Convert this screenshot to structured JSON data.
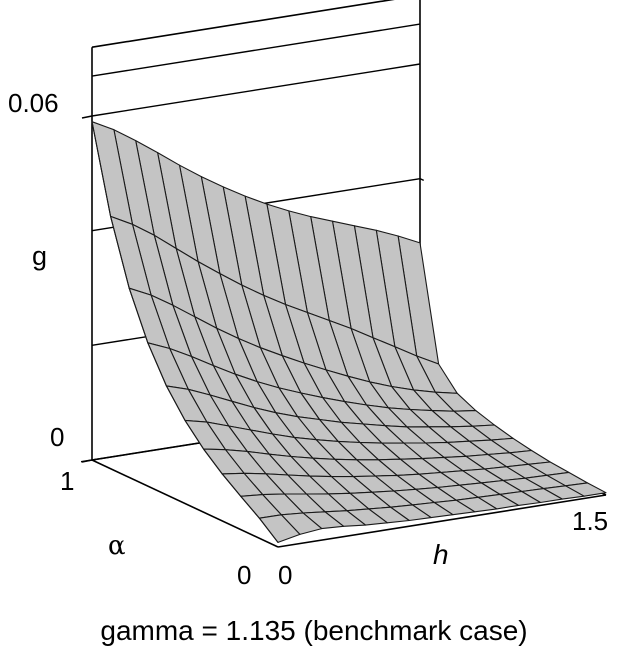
{
  "chart_data": {
    "type": "surface3d",
    "title": "gamma = 1.135 (benchmark case)",
    "axes": {
      "h": {
        "label": "h",
        "range": [
          0,
          1.5
        ],
        "ticks": [
          "0",
          "1.5"
        ]
      },
      "alpha": {
        "label": "α",
        "range": [
          0,
          1
        ],
        "ticks": [
          "0",
          "1"
        ]
      },
      "g": {
        "label": "g",
        "range": [
          0,
          0.06
        ],
        "ticks": [
          "0",
          "0.06"
        ]
      }
    },
    "grid": true,
    "h": [
      0,
      0.1,
      0.2,
      0.3,
      0.4,
      0.5,
      0.6,
      0.7,
      0.8,
      0.9,
      1.0,
      1.1,
      1.2,
      1.3,
      1.4,
      1.5
    ],
    "alpha": [
      0,
      0.1,
      0.2,
      0.3,
      0.4,
      0.5,
      0.6,
      0.7,
      0.8,
      0.9,
      1.0
    ],
    "g_by_alpha": [
      [
        0.0008,
        0.0016,
        0.002,
        0.0018,
        0.0014,
        0.0012,
        0.001,
        0.0009,
        0.0008,
        0.0007,
        0.0006,
        0.0006,
        0.0005,
        0.0005,
        0.0004,
        0.0004
      ],
      [
        0.0035,
        0.0035,
        0.0032,
        0.0028,
        0.0024,
        0.0021,
        0.0018,
        0.0016,
        0.0014,
        0.0012,
        0.0011,
        0.001,
        0.0009,
        0.0008,
        0.0007,
        0.0006
      ],
      [
        0.0058,
        0.0055,
        0.005,
        0.0044,
        0.0038,
        0.0033,
        0.0029,
        0.0025,
        0.0022,
        0.0019,
        0.0017,
        0.0015,
        0.0013,
        0.0011,
        0.001,
        0.0009
      ],
      [
        0.0082,
        0.0077,
        0.007,
        0.0062,
        0.0054,
        0.0047,
        0.0041,
        0.0036,
        0.0031,
        0.0027,
        0.0024,
        0.0021,
        0.0018,
        0.0016,
        0.0014,
        0.0012
      ],
      [
        0.011,
        0.0103,
        0.0094,
        0.0083,
        0.0073,
        0.0064,
        0.0056,
        0.0049,
        0.0043,
        0.0038,
        0.0033,
        0.0029,
        0.0025,
        0.0022,
        0.0019,
        0.0017
      ],
      [
        0.0145,
        0.0136,
        0.0123,
        0.011,
        0.0097,
        0.0085,
        0.0075,
        0.0066,
        0.0058,
        0.0051,
        0.0045,
        0.0039,
        0.0034,
        0.003,
        0.0026,
        0.0023
      ],
      [
        0.019,
        0.0178,
        0.0162,
        0.0145,
        0.0128,
        0.0113,
        0.01,
        0.0089,
        0.0078,
        0.0069,
        0.006,
        0.0052,
        0.0046,
        0.004,
        0.0035,
        0.0031
      ],
      [
        0.025,
        0.0234,
        0.0214,
        0.0192,
        0.0171,
        0.0152,
        0.0135,
        0.012,
        0.0106,
        0.0093,
        0.0081,
        0.007,
        0.0061,
        0.0053,
        0.0046,
        0.0041
      ],
      [
        0.033,
        0.0312,
        0.0288,
        0.0262,
        0.0236,
        0.0212,
        0.019,
        0.017,
        0.0151,
        0.0133,
        0.0116,
        0.01,
        0.0086,
        0.0074,
        0.0064,
        0.0056
      ],
      [
        0.044,
        0.042,
        0.0395,
        0.0366,
        0.0337,
        0.031,
        0.0284,
        0.026,
        0.0238,
        0.0218,
        0.0198,
        0.0178,
        0.0156,
        0.0134,
        0.0112,
        0.0092
      ],
      [
        0.059,
        0.057,
        0.0545,
        0.0518,
        0.049,
        0.0464,
        0.044,
        0.0418,
        0.0398,
        0.038,
        0.0364,
        0.035,
        0.0336,
        0.0322,
        0.0306,
        0.0288
      ]
    ]
  }
}
